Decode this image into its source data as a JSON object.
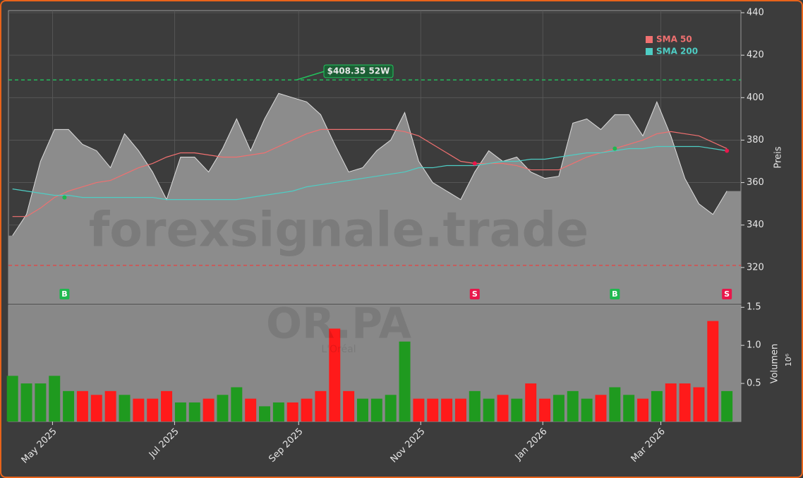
{
  "chart_data": {
    "type": "stock",
    "watermark": "forexsignale.trade",
    "symbol": "OR.PA",
    "company": "L'Oréal",
    "y_label": "Preis",
    "volume_label": "Volumen",
    "volume_multiplier_label": "10⁶",
    "x": [
      "2025-04-11",
      "2025-04-18",
      "2025-04-25",
      "2025-05-02",
      "2025-05-09",
      "2025-05-16",
      "2025-05-23",
      "2025-05-30",
      "2025-06-06",
      "2025-06-13",
      "2025-06-20",
      "2025-06-27",
      "2025-07-04",
      "2025-07-11",
      "2025-07-18",
      "2025-07-25",
      "2025-08-01",
      "2025-08-08",
      "2025-08-15",
      "2025-08-22",
      "2025-08-29",
      "2025-09-05",
      "2025-09-12",
      "2025-09-19",
      "2025-09-26",
      "2025-10-03",
      "2025-10-10",
      "2025-10-17",
      "2025-10-24",
      "2025-10-31",
      "2025-11-07",
      "2025-11-14",
      "2025-11-21",
      "2025-11-28",
      "2025-12-05",
      "2025-12-12",
      "2025-12-19",
      "2025-12-26",
      "2026-01-02",
      "2026-01-09",
      "2026-01-16",
      "2026-01-23",
      "2026-01-30",
      "2026-02-06",
      "2026-02-13",
      "2026-02-20",
      "2026-02-27",
      "2026-03-06",
      "2026-03-13",
      "2026-03-20",
      "2026-03-27",
      "2026-04-03"
    ],
    "price": {
      "color": "#8c8c8c",
      "values": [
        335,
        345,
        370,
        385,
        385,
        378,
        375,
        367,
        383,
        375,
        365,
        352,
        372,
        372,
        365,
        376,
        390,
        375,
        390,
        402,
        400,
        398,
        392,
        378,
        365,
        367,
        375,
        380,
        393,
        370,
        360,
        356,
        352,
        365,
        375,
        370,
        372,
        365,
        362,
        363,
        388,
        390,
        385,
        392,
        392,
        382,
        398,
        382,
        362,
        350,
        345,
        356
      ]
    },
    "series": [
      {
        "name": "SMA 50",
        "color": "#f07070",
        "values": [
          344,
          344,
          348,
          353,
          356,
          358,
          360,
          361,
          364,
          367,
          369,
          372,
          374,
          374,
          373,
          372,
          372,
          373,
          374,
          377,
          380,
          383,
          385,
          385,
          385,
          385,
          385,
          385,
          384,
          382,
          378,
          374,
          370,
          369,
          369,
          369,
          368,
          366,
          366,
          366,
          369,
          372,
          374,
          376,
          378,
          380,
          383,
          384,
          383,
          382,
          379,
          376
        ]
      },
      {
        "name": "SMA 200",
        "color": "#4ecdc4",
        "values": [
          357,
          356,
          355,
          354,
          354,
          353,
          353,
          353,
          353,
          353,
          353,
          352,
          352,
          352,
          352,
          352,
          352,
          353,
          354,
          355,
          356,
          358,
          359,
          360,
          361,
          362,
          363,
          364,
          365,
          367,
          367,
          368,
          368,
          368,
          369,
          370,
          370,
          371,
          371,
          372,
          373,
          374,
          374,
          375,
          376,
          376,
          377,
          377,
          377,
          377,
          376,
          375
        ]
      }
    ],
    "volume": {
      "up_color": "#1f9a1f",
      "down_color": "#ff1a1a",
      "values": [
        0.6,
        0.5,
        0.5,
        0.6,
        0.4,
        0.4,
        0.35,
        0.4,
        0.35,
        0.3,
        0.3,
        0.4,
        0.25,
        0.25,
        0.3,
        0.35,
        0.45,
        0.3,
        0.2,
        0.25,
        0.25,
        0.3,
        0.4,
        1.22,
        0.4,
        0.3,
        0.3,
        0.35,
        1.05,
        0.3,
        0.3,
        0.3,
        0.3,
        0.4,
        0.3,
        0.35,
        0.3,
        0.5,
        0.3,
        0.35,
        0.4,
        0.3,
        0.35,
        0.45,
        0.35,
        0.3,
        0.4,
        0.5,
        0.5,
        0.45,
        1.32,
        0.4
      ],
      "ylim": [
        0,
        1.53
      ],
      "yticks": [
        0.5,
        {
          "value": 1,
          "label": "1.0"
        },
        1.5
      ]
    },
    "signals": [
      {
        "date": "2025-05-07",
        "price": 353,
        "label": "B",
        "color": "#1fb84f"
      },
      {
        "date": "2025-11-28",
        "price": 369,
        "label": "S",
        "color": "#e8174b"
      },
      {
        "date": "2026-02-06",
        "price": 376,
        "label": "B",
        "color": "#1fb84f"
      },
      {
        "date": "2026-04-03",
        "price": 375,
        "label": "S",
        "color": "#e8174b"
      }
    ],
    "high_52w": {
      "value": 408.35,
      "label": "$408.35 52W",
      "color": "#22c55e"
    },
    "low_52w": {
      "value": 321,
      "color": "#e84040"
    },
    "xlim": [
      "2025-04-09",
      "2026-04-10"
    ],
    "ylim": [
      303,
      441
    ],
    "yticks": [
      320,
      340,
      360,
      380,
      400,
      420,
      440
    ],
    "xticks": [
      {
        "value": "2025-05-01",
        "label": "May 2025"
      },
      {
        "value": "2025-07-01",
        "label": "Jul 2025"
      },
      {
        "value": "2025-09-01",
        "label": "Sep 2025"
      },
      {
        "value": "2025-11-01",
        "label": "Nov 2025"
      },
      {
        "value": "2026-01-01",
        "label": "Jan 2026"
      },
      {
        "value": "2026-03-01",
        "label": "Mar 2026"
      }
    ],
    "grid": true,
    "legend": "upper right"
  }
}
